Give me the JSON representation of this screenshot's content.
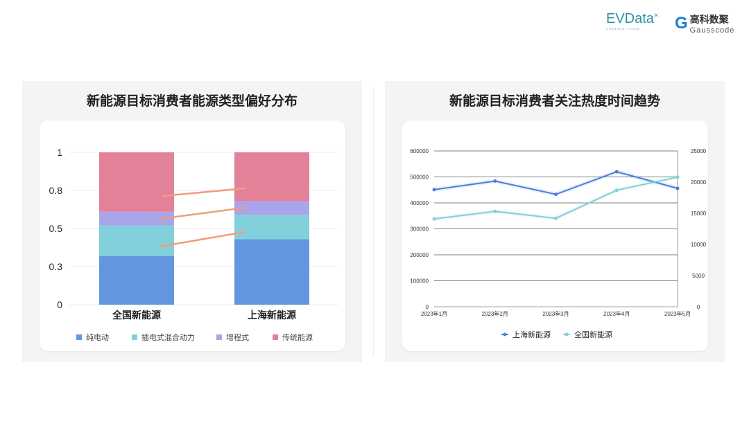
{
  "header": {
    "logo_evdata": "EVData",
    "logo_evdata_sub": "SHANGHAI CHINA",
    "logo_gauss_cn": "高科数聚",
    "logo_gauss_en": "Gausscode"
  },
  "chart_data": [
    {
      "type": "bar",
      "stacked": true,
      "title": "新能源目标消费者能源类型偏好分布",
      "categories": [
        "全国新能源",
        "上海新能源"
      ],
      "yticks": [
        "0",
        "0.3",
        "0.5",
        "0.8",
        "1"
      ],
      "ylim": [
        0,
        1
      ],
      "grid": true,
      "legend": "bottom",
      "series": [
        {
          "name": "纯电动",
          "values": [
            0.32,
            0.43
          ],
          "color": "#6495df"
        },
        {
          "name": "插电式混合动力",
          "values": [
            0.2,
            0.16
          ],
          "color": "#82d0db"
        },
        {
          "name": "增程式",
          "values": [
            0.09,
            0.09
          ],
          "color": "#aaa4ea"
        },
        {
          "name": "传统能源",
          "values": [
            0.39,
            0.32
          ],
          "color": "#e38198"
        }
      ]
    },
    {
      "type": "line",
      "title": "新能源目标消费者关注热度时间趋势",
      "categories": [
        "2023年1月",
        "2023年2月",
        "2023年3月",
        "2023年4月",
        "2023年5月"
      ],
      "yticks_left": [
        "0",
        "100000",
        "200000",
        "300000",
        "400000",
        "500000",
        "600000"
      ],
      "ylim_left": [
        0,
        600000
      ],
      "yticks_right": [
        "0",
        "5000",
        "10000",
        "15000",
        "20000",
        "25000"
      ],
      "ylim_right": [
        0,
        25000
      ],
      "grid": true,
      "legend": "bottom",
      "series": [
        {
          "name": "上海新能源",
          "axis": "left",
          "values": [
            451000,
            484000,
            433000,
            520000,
            456000
          ],
          "color": "#4a7fdc"
        },
        {
          "name": "全国新能源",
          "axis": "right",
          "values": [
            14100,
            15300,
            14200,
            18700,
            20800
          ],
          "color": "#7fcfdc"
        }
      ]
    }
  ]
}
